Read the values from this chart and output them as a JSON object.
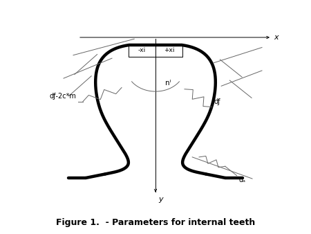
{
  "title": "Figure 1.  - Parameters for internal teeth",
  "title_fontsize": 9,
  "bg_color": "#ffffff",
  "line_color": "#000000",
  "dim_color": "#666666",
  "tooth_lw": 3.2,
  "dim_lw": 0.7,
  "labels": {
    "x_axis": "x",
    "y_axis": "y",
    "minus_xi": "-xi",
    "plus_xi": "+xi",
    "ni": "nᴵ",
    "df_2cm": "dƒ-2c*m",
    "df": "dƒ",
    "da": "dₐ"
  }
}
